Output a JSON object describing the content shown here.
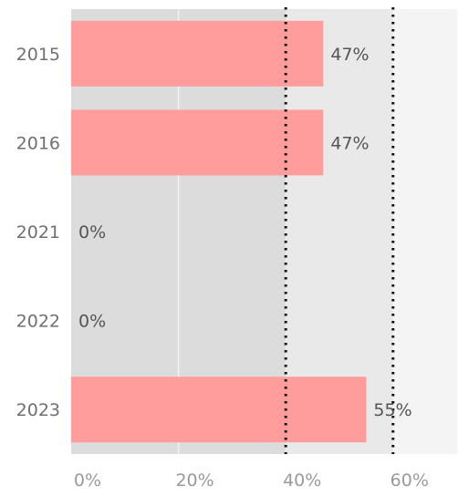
{
  "chart_data": {
    "type": "bar",
    "orientation": "horizontal",
    "categories": [
      "2015",
      "2016",
      "2021",
      "2022",
      "2023"
    ],
    "values": [
      47,
      47,
      0,
      0,
      55
    ],
    "value_labels": [
      "47%",
      "47%",
      "0%",
      "0%",
      "55%"
    ],
    "xlim": [
      0,
      72
    ],
    "x_ticks": [
      0,
      20,
      40,
      60
    ],
    "x_tick_labels": [
      "0%",
      "20%",
      "40%",
      "60%"
    ],
    "bands": [
      {
        "from": 0,
        "to": 40,
        "color": "#dcdcdc"
      },
      {
        "from": 40,
        "to": 60,
        "color": "#e9e9e9"
      },
      {
        "from": 60,
        "to": 72,
        "color": "#f4f4f4"
      }
    ],
    "reference_lines": [
      40,
      60
    ],
    "grid": true,
    "legend": "none",
    "title": "",
    "xlabel": "",
    "ylabel": "",
    "colors": {
      "bar": "#ff9c9c",
      "label": "#555555",
      "tick": "#9a9a9a",
      "category": "#707070",
      "gridline": "#f2f2f2",
      "refline": "#111111"
    }
  }
}
